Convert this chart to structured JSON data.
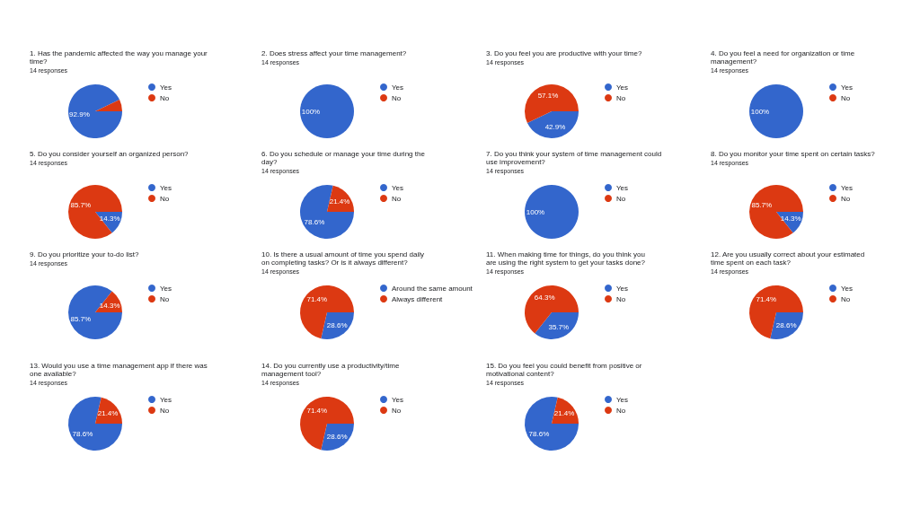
{
  "chart_data": [
    {
      "type": "pie",
      "title": "1. Has the pandemic affected the way you manage your time?",
      "subtitle": "14 responses",
      "categories": [
        "Yes",
        "No"
      ],
      "values": [
        92.9,
        7.1
      ],
      "colors": [
        "#3366cc",
        "#dc3912"
      ],
      "value_labels": [
        "92.9%",
        null
      ],
      "legend": "top right"
    },
    {
      "type": "pie",
      "title": "2. Does stress affect your time management?",
      "subtitle": "14 responses",
      "categories": [
        "Yes",
        "No"
      ],
      "values": [
        100,
        0
      ],
      "colors": [
        "#3366cc",
        "#dc3912"
      ],
      "value_labels": [
        "100%",
        null
      ],
      "legend": "top right"
    },
    {
      "type": "pie",
      "title": "3. Do you feel you are productive with your time?",
      "subtitle": "14 responses",
      "categories": [
        "Yes",
        "No"
      ],
      "values": [
        42.9,
        57.1
      ],
      "colors": [
        "#3366cc",
        "#dc3912"
      ],
      "value_labels": [
        "42.9%",
        "57.1%"
      ],
      "legend": "top right"
    },
    {
      "type": "pie",
      "title": "4. Do you feel a need for organization or time management?",
      "subtitle": "14 responses",
      "categories": [
        "Yes",
        "No"
      ],
      "values": [
        100,
        0
      ],
      "colors": [
        "#3366cc",
        "#dc3912"
      ],
      "value_labels": [
        "100%",
        null
      ],
      "legend": "top right"
    },
    {
      "type": "pie",
      "title": "5. Do you consider yourself an organized person?",
      "subtitle": "14 responses",
      "categories": [
        "Yes",
        "No"
      ],
      "values": [
        14.3,
        85.7
      ],
      "colors": [
        "#3366cc",
        "#dc3912"
      ],
      "value_labels": [
        "14.3%",
        "85.7%"
      ],
      "legend": "top right"
    },
    {
      "type": "pie",
      "title": "6. Do you schedule or manage your time during the day?",
      "subtitle": "14 responses",
      "categories": [
        "Yes",
        "No"
      ],
      "values": [
        78.6,
        21.4
      ],
      "colors": [
        "#3366cc",
        "#dc3912"
      ],
      "value_labels": [
        "78.6%",
        "21.4%"
      ],
      "legend": "top right"
    },
    {
      "type": "pie",
      "title": "7. Do you think your system of time management could use improvement?",
      "subtitle": "14 responses",
      "categories": [
        "Yes",
        "No"
      ],
      "values": [
        100,
        0
      ],
      "colors": [
        "#3366cc",
        "#dc3912"
      ],
      "value_labels": [
        "100%",
        null
      ],
      "legend": "top right"
    },
    {
      "type": "pie",
      "title": "8. Do you monitor your time spent on certain tasks?",
      "subtitle": "14 responses",
      "categories": [
        "Yes",
        "No"
      ],
      "values": [
        14.3,
        85.7
      ],
      "colors": [
        "#3366cc",
        "#dc3912"
      ],
      "value_labels": [
        "14.3%",
        "85.7%"
      ],
      "legend": "top right"
    },
    {
      "type": "pie",
      "title": "9. Do you prioritize your to-do list?",
      "subtitle": "14 responses",
      "categories": [
        "Yes",
        "No"
      ],
      "values": [
        85.7,
        14.3
      ],
      "colors": [
        "#3366cc",
        "#dc3912"
      ],
      "value_labels": [
        "85.7%",
        "14.3%"
      ],
      "legend": "top right"
    },
    {
      "type": "pie",
      "title": "10. Is there a usual amount of time you spend daily on completing tasks? Or is it always different?",
      "subtitle": "14 responses",
      "categories": [
        "Around the same amount",
        "Always different"
      ],
      "values": [
        28.6,
        71.4
      ],
      "colors": [
        "#3366cc",
        "#dc3912"
      ],
      "value_labels": [
        "28.6%",
        "71.4%"
      ],
      "legend": "top right"
    },
    {
      "type": "pie",
      "title": "11. When making time for things, do you think you are using the right system to get your tasks done?",
      "subtitle": "14 responses",
      "categories": [
        "Yes",
        "No"
      ],
      "values": [
        35.7,
        64.3
      ],
      "colors": [
        "#3366cc",
        "#dc3912"
      ],
      "value_labels": [
        "35.7%",
        "64.3%"
      ],
      "legend": "top right"
    },
    {
      "type": "pie",
      "title": "12. Are you usually correct about your estimated time spent on each task?",
      "subtitle": "14 responses",
      "categories": [
        "Yes",
        "No"
      ],
      "values": [
        28.6,
        71.4
      ],
      "colors": [
        "#3366cc",
        "#dc3912"
      ],
      "value_labels": [
        "28.6%",
        "71.4%"
      ],
      "legend": "top right"
    },
    {
      "type": "pie",
      "title": "13. Would you use a time management app if there was one available?",
      "subtitle": "14 responses",
      "categories": [
        "Yes",
        "No"
      ],
      "values": [
        78.6,
        21.4
      ],
      "colors": [
        "#3366cc",
        "#dc3912"
      ],
      "value_labels": [
        "78.6%",
        "21.4%"
      ],
      "legend": "top right"
    },
    {
      "type": "pie",
      "title": "14. Do you currently use a productivity/time management tool?",
      "subtitle": "14 responses",
      "categories": [
        "Yes",
        "No"
      ],
      "values": [
        28.6,
        71.4
      ],
      "colors": [
        "#3366cc",
        "#dc3912"
      ],
      "value_labels": [
        "28.6%",
        "71.4%"
      ],
      "legend": "top right"
    },
    {
      "type": "pie",
      "title": "15. Do you feel you could benefit from positive or motivational content?",
      "subtitle": "14 responses",
      "categories": [
        "Yes",
        "No"
      ],
      "values": [
        78.6,
        21.4
      ],
      "colors": [
        "#3366cc",
        "#dc3912"
      ],
      "value_labels": [
        "78.6%",
        "21.4%"
      ],
      "legend": "top right"
    }
  ]
}
